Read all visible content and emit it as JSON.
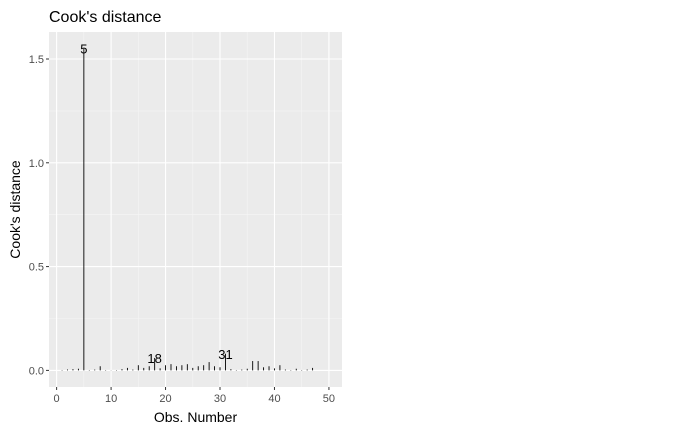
{
  "chart_data": {
    "type": "bar",
    "title": "Cook's distance",
    "xlabel": "Obs. Number",
    "ylabel": "Cook's distance",
    "xlim": [
      -1.4,
      52.4
    ],
    "ylim": [
      -0.08,
      1.63
    ],
    "x_ticks": [
      0,
      10,
      20,
      30,
      40,
      50
    ],
    "y_ticks": [
      0.0,
      0.5,
      1.0,
      1.5
    ],
    "y_tick_labels": [
      "0.0",
      "0.5",
      "1.0",
      "1.5"
    ],
    "grid": true,
    "panel_background": "#ebebeb",
    "line_color": "#000000",
    "x": [
      1,
      2,
      3,
      4,
      5,
      6,
      7,
      8,
      9,
      10,
      11,
      12,
      13,
      14,
      15,
      16,
      17,
      18,
      19,
      20,
      21,
      22,
      23,
      24,
      25,
      26,
      27,
      28,
      29,
      30,
      31,
      32,
      33,
      34,
      35,
      36,
      37,
      38,
      39,
      40,
      41,
      42,
      43,
      44,
      45,
      46,
      47
    ],
    "values": [
      0.002,
      0.004,
      0.006,
      0.008,
      1.55,
      0.002,
      0.004,
      0.02,
      0.002,
      0.001,
      0.002,
      0.006,
      0.012,
      0.004,
      0.025,
      0.012,
      0.02,
      0.06,
      0.01,
      0.025,
      0.03,
      0.02,
      0.025,
      0.03,
      0.012,
      0.02,
      0.025,
      0.04,
      0.02,
      0.015,
      0.08,
      0.006,
      0.002,
      0.004,
      0.008,
      0.045,
      0.045,
      0.015,
      0.02,
      0.01,
      0.025,
      0.004,
      0.002,
      0.008,
      0.002,
      0.004,
      0.012
    ],
    "annotations": [
      {
        "x": 5,
        "y": 1.55,
        "label": "5"
      },
      {
        "x": 18,
        "y": 0.06,
        "label": "18"
      },
      {
        "x": 31,
        "y": 0.08,
        "label": "31"
      }
    ]
  }
}
